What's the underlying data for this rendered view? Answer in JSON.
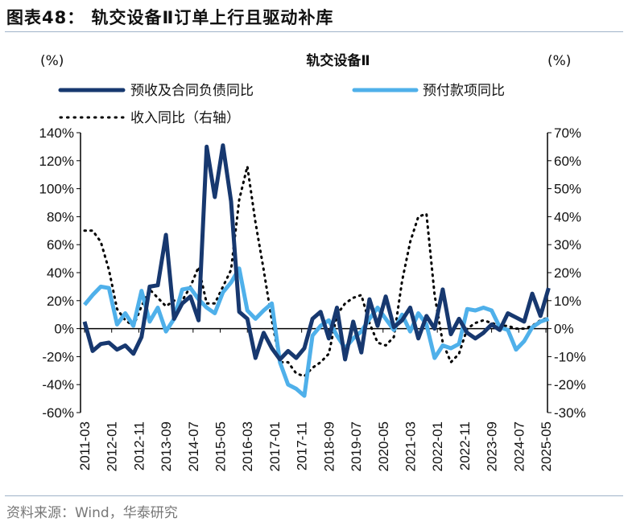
{
  "figure_title": "图表48：  轨交设备Ⅱ订单上行且驱动补库",
  "source": "资料来源：Wind，华泰研究",
  "chart_data": {
    "type": "line",
    "title": "轨交设备Ⅱ",
    "ylabel_left": "(%)",
    "ylabel_right": "(%)",
    "ylim_left": [
      -60,
      140
    ],
    "ylim_right": [
      -30,
      70
    ],
    "yticks_left": [
      "140%",
      "120%",
      "100%",
      "80%",
      "60%",
      "40%",
      "20%",
      "0%",
      "-20%",
      "-40%",
      "-60%"
    ],
    "yticks_right": [
      "70%",
      "60%",
      "50%",
      "40%",
      "30%",
      "20%",
      "10%",
      "0%",
      "-10%",
      "-20%",
      "-30%"
    ],
    "xtick_labels": [
      "2011-03",
      "2012-01",
      "2012-11",
      "2013-09",
      "2014-07",
      "2015-05",
      "2016-03",
      "2017-01",
      "2017-11",
      "2018-09",
      "2019-07",
      "2020-05",
      "2021-03",
      "2022-01",
      "2022-11",
      "2023-09",
      "2024-07",
      "2025-05"
    ],
    "xlim": [
      "2011-03",
      "2025-05"
    ],
    "grid": false,
    "legend_position": "top",
    "x": [
      "2011-03",
      "2011-06",
      "2011-09",
      "2011-12",
      "2012-03",
      "2012-06",
      "2012-09",
      "2012-12",
      "2013-03",
      "2013-06",
      "2013-09",
      "2013-12",
      "2014-03",
      "2014-06",
      "2014-09",
      "2014-12",
      "2015-03",
      "2015-06",
      "2015-09",
      "2015-12",
      "2016-03",
      "2016-06",
      "2016-09",
      "2016-12",
      "2017-03",
      "2017-06",
      "2017-09",
      "2017-12",
      "2018-03",
      "2018-06",
      "2018-09",
      "2018-12",
      "2019-03",
      "2019-06",
      "2019-09",
      "2019-12",
      "2020-03",
      "2020-06",
      "2020-09",
      "2020-12",
      "2021-03",
      "2021-06",
      "2021-09",
      "2021-12",
      "2022-03",
      "2022-06",
      "2022-09",
      "2022-12",
      "2023-03",
      "2023-06",
      "2023-09",
      "2023-12",
      "2024-03",
      "2024-06",
      "2024-09",
      "2024-12",
      "2025-03",
      "2025-06"
    ],
    "series": [
      {
        "name": "预收及合同负债同比",
        "axis": "left",
        "color": "#17386f",
        "style": "solid",
        "values": [
          5,
          -16,
          -11,
          -10,
          -15,
          -12,
          -18,
          -6,
          30,
          31,
          67,
          7,
          18,
          23,
          6,
          130,
          94,
          131,
          91,
          12,
          7,
          -21,
          -3,
          -14,
          -22,
          -16,
          -21,
          -14,
          7,
          12,
          -7,
          15,
          -22,
          5,
          -17,
          21,
          2,
          23,
          1,
          6,
          15,
          -7,
          9,
          0,
          28,
          -4,
          7,
          -3,
          -7,
          -3,
          3,
          -1,
          11,
          8,
          5,
          25,
          9,
          29
        ]
      },
      {
        "name": "预付款项同比",
        "axis": "left",
        "color": "#4fb0ea",
        "style": "solid",
        "values": [
          17,
          24,
          30,
          29,
          3,
          11,
          2,
          27,
          5,
          15,
          -2,
          7,
          28,
          29,
          21,
          15,
          11,
          26,
          33,
          43,
          13,
          7,
          13,
          18,
          -24,
          -40,
          -43,
          -48,
          -5,
          2,
          6,
          -5,
          -14,
          -7,
          -2,
          7,
          15,
          7,
          -1,
          10,
          -2,
          11,
          3,
          -21,
          -12,
          -14,
          -11,
          14,
          13,
          15,
          13,
          1,
          -1,
          -15,
          -9,
          1,
          5,
          7
        ]
      },
      {
        "name": "收入同比（右轴）",
        "axis": "right",
        "color": "#000000",
        "style": "dotted",
        "values": [
          35,
          35,
          31,
          21,
          7,
          3,
          1,
          8,
          14,
          11,
          8,
          10,
          10,
          15,
          22,
          9,
          9,
          15,
          21,
          46,
          58,
          38,
          21,
          3,
          -12,
          -12,
          -16,
          -17,
          -14,
          -12,
          -9,
          5,
          9,
          11,
          12,
          2,
          -5,
          -6,
          -3,
          17,
          31,
          40,
          41,
          12,
          -5,
          -12,
          -9,
          0,
          2,
          3,
          2,
          1,
          1,
          0,
          0,
          1,
          3,
          4
        ]
      }
    ]
  }
}
